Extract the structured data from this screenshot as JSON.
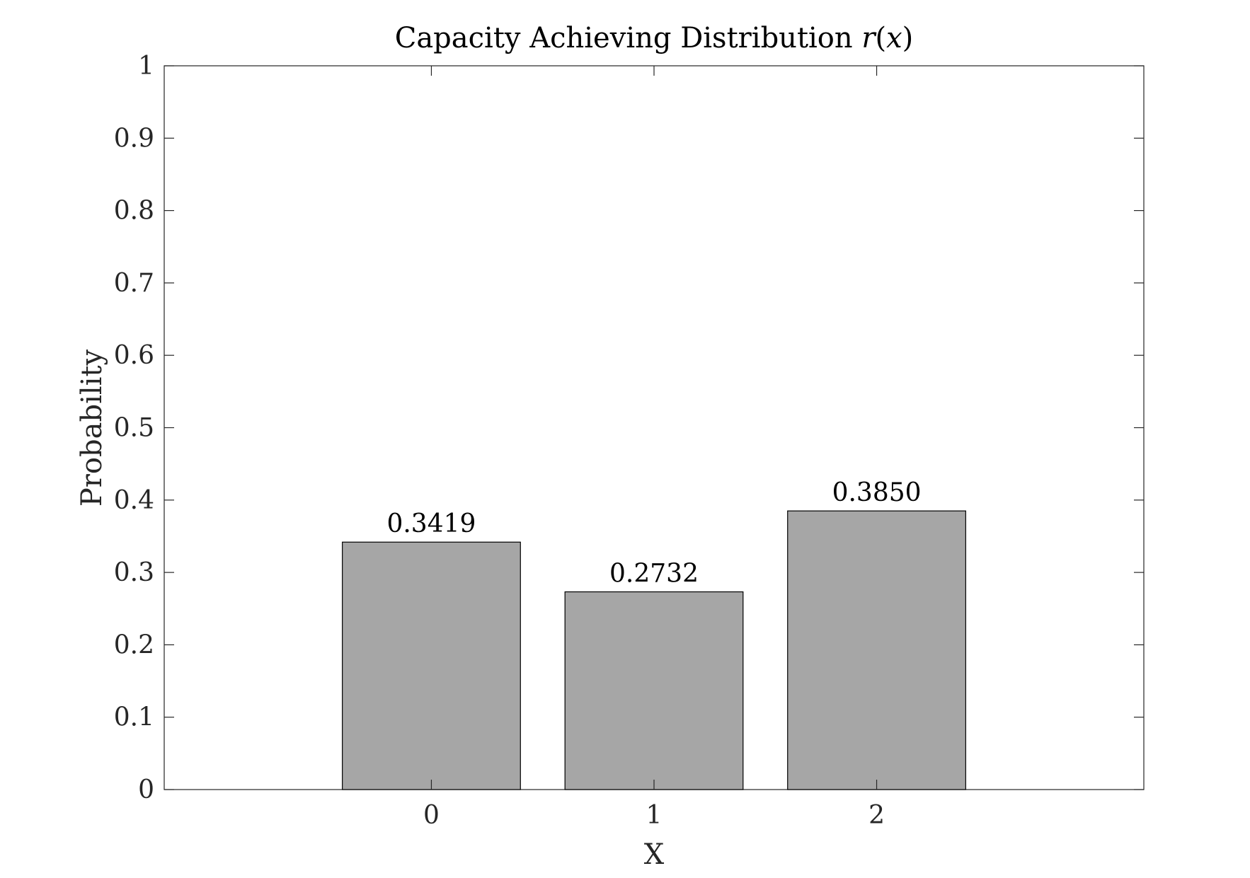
{
  "chart_data": {
    "type": "bar",
    "title": {
      "text": "Capacity Achieving Distribution",
      "math_func": "r",
      "math_open": "(",
      "math_var": "x",
      "math_close": ")"
    },
    "xlabel": "X",
    "ylabel": "Probability",
    "categories": [
      "0",
      "1",
      "2"
    ],
    "values": [
      0.3419,
      0.2732,
      0.385
    ],
    "value_labels": [
      "0.3419",
      "0.2732",
      "0.3850"
    ],
    "xlim": [
      -1.2,
      3.2
    ],
    "ylim": [
      0,
      1
    ],
    "yticks": [
      0,
      0.1,
      0.2,
      0.3,
      0.4,
      0.5,
      0.6,
      0.7,
      0.8,
      0.9,
      1
    ],
    "ytick_labels": [
      "0",
      "0.1",
      "0.2",
      "0.3",
      "0.4",
      "0.5",
      "0.6",
      "0.7",
      "0.8",
      "0.9",
      "1"
    ],
    "bar_width": 0.8,
    "grid": false,
    "legend": "none",
    "bar_color": "#a6a6a6",
    "bar_edge_color": "#000000",
    "axis_color": "#262626"
  }
}
